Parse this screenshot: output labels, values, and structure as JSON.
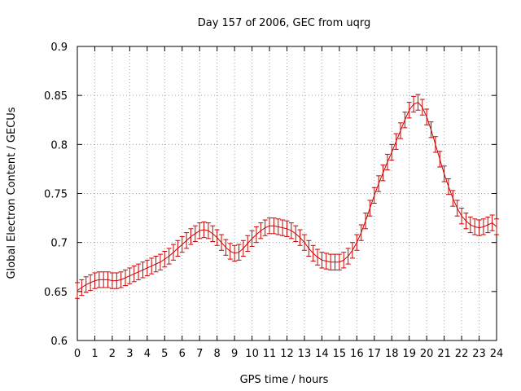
{
  "chart_data": {
    "type": "line",
    "title": "Day 157 of 2006, GEC from uqrg",
    "xlabel": "GPS time / hours",
    "ylabel": "Global Electron Content / GECUs",
    "xlim": [
      0,
      24
    ],
    "ylim": [
      0.6,
      0.9
    ],
    "grid": true,
    "color": "#cc0000",
    "x_ticks": [
      0,
      1,
      2,
      3,
      4,
      5,
      6,
      7,
      8,
      9,
      10,
      11,
      12,
      13,
      14,
      15,
      16,
      17,
      18,
      19,
      20,
      21,
      22,
      23,
      24
    ],
    "y_ticks": [
      "0.6",
      "0.65",
      "0.7",
      "0.75",
      "0.8",
      "0.85",
      "0.9"
    ],
    "series": [
      {
        "x": [
          0,
          0.25,
          0.5,
          0.75,
          1,
          1.25,
          1.5,
          1.75,
          2,
          2.25,
          2.5,
          2.75,
          3,
          3.25,
          3.5,
          3.75,
          4,
          4.25,
          4.5,
          4.75,
          5,
          5.25,
          5.5,
          5.75,
          6,
          6.25,
          6.5,
          6.75,
          7,
          7.25,
          7.5,
          7.75,
          8,
          8.25,
          8.5,
          8.75,
          9,
          9.25,
          9.5,
          9.75,
          10,
          10.25,
          10.5,
          10.75,
          11,
          11.25,
          11.5,
          11.75,
          12,
          12.25,
          12.5,
          12.75,
          13,
          13.25,
          13.5,
          13.75,
          14,
          14.25,
          14.5,
          14.75,
          15,
          15.25,
          15.5,
          15.75,
          16,
          16.25,
          16.5,
          16.75,
          17,
          17.25,
          17.5,
          17.75,
          18,
          18.25,
          18.5,
          18.75,
          19,
          19.25,
          19.5,
          19.75,
          20,
          20.25,
          20.5,
          20.75,
          21,
          21.25,
          21.5,
          21.75,
          22,
          22.25,
          22.5,
          22.75,
          23,
          23.25,
          23.5,
          23.75,
          24
        ],
        "y": [
          0.651,
          0.654,
          0.657,
          0.659,
          0.661,
          0.662,
          0.662,
          0.662,
          0.661,
          0.661,
          0.662,
          0.664,
          0.666,
          0.668,
          0.67,
          0.672,
          0.674,
          0.676,
          0.678,
          0.68,
          0.683,
          0.686,
          0.69,
          0.694,
          0.698,
          0.702,
          0.706,
          0.709,
          0.712,
          0.713,
          0.712,
          0.709,
          0.705,
          0.7,
          0.695,
          0.691,
          0.689,
          0.69,
          0.694,
          0.699,
          0.704,
          0.708,
          0.712,
          0.715,
          0.717,
          0.717,
          0.716,
          0.715,
          0.714,
          0.712,
          0.709,
          0.705,
          0.7,
          0.694,
          0.689,
          0.685,
          0.682,
          0.681,
          0.68,
          0.68,
          0.68,
          0.682,
          0.686,
          0.692,
          0.7,
          0.71,
          0.722,
          0.735,
          0.748,
          0.76,
          0.771,
          0.782,
          0.792,
          0.803,
          0.814,
          0.825,
          0.835,
          0.841,
          0.843,
          0.838,
          0.828,
          0.815,
          0.8,
          0.785,
          0.77,
          0.757,
          0.745,
          0.735,
          0.727,
          0.722,
          0.718,
          0.716,
          0.715,
          0.716,
          0.718,
          0.72,
          0.716
        ],
        "error": 0.008
      }
    ]
  }
}
